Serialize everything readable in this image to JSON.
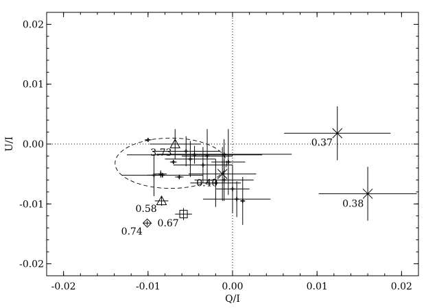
{
  "chart_data": {
    "type": "scatter",
    "xlabel": "Q/I",
    "ylabel": "U/I",
    "xlim": [
      -0.022,
      0.022
    ],
    "ylim": [
      -0.022,
      0.022
    ],
    "xticks": [
      -0.02,
      -0.01,
      0.0,
      0.01,
      0.02
    ],
    "yticks": [
      -0.02,
      -0.01,
      0.0,
      0.01,
      0.02
    ],
    "xtick_labels": [
      "-0.02",
      "-0.01",
      "0.00",
      "0.01",
      "0.02"
    ],
    "ytick_labels": [
      "-0.02",
      "-0.01",
      "0.00",
      "0.01",
      "0.02"
    ],
    "reference_lines": {
      "x": 0,
      "y": 0,
      "style": "dotted"
    },
    "ellipse": {
      "cx": -0.0073,
      "cy": -0.0032,
      "rx": 0.0066,
      "ry": 0.0042,
      "style": "dashed"
    },
    "small_points": [
      {
        "x": -0.01,
        "y": 0.0007,
        "xerr": 0.0004,
        "yerr": 0.0002
      },
      {
        "x": -0.0093,
        "y": -0.0052,
        "xerr": 0.0008,
        "yerr": 0.0035
      },
      {
        "x": -0.0085,
        "y": -0.005,
        "xerr": 0.0007,
        "yerr": 0.0006
      },
      {
        "x": -0.0083,
        "y": -0.0052,
        "xerr": 0.0048,
        "yerr": 0.0004
      },
      {
        "x": -0.007,
        "y": -0.003,
        "xerr": 0.0004,
        "yerr": 0.0002
      },
      {
        "x": -0.0063,
        "y": -0.0055,
        "xerr": 0.0005,
        "yerr": 0.0004
      },
      {
        "x": -0.0055,
        "y": -0.0012,
        "xerr": 0.004,
        "yerr": 0.0025
      },
      {
        "x": -0.005,
        "y": -0.0025,
        "xerr": 0.003,
        "yerr": 0.003
      },
      {
        "x": -0.0045,
        "y": -0.0018,
        "xerr": 0.008,
        "yerr": 0.0015
      },
      {
        "x": -0.0035,
        "y": -0.0035,
        "xerr": 0.0035,
        "yerr": 0.003
      },
      {
        "x": -0.003,
        "y": -0.002,
        "xerr": 0.003,
        "yerr": 0.0045
      },
      {
        "x": -0.002,
        "y": -0.0065,
        "xerr": 0.003,
        "yerr": 0.004
      },
      {
        "x": -0.001,
        "y": -0.0017,
        "xerr": 0.008,
        "yerr": 0.0025
      },
      {
        "x": -0.001,
        "y": -0.006,
        "xerr": 0.0035,
        "yerr": 0.0035
      },
      {
        "x": -0.0005,
        "y": -0.003,
        "xerr": 0.002,
        "yerr": 0.0055
      },
      {
        "x": 0.0,
        "y": -0.0075,
        "xerr": 0.002,
        "yerr": 0.004
      },
      {
        "x": 0.0005,
        "y": -0.0092,
        "xerr": 0.004,
        "yerr": 0.003
      },
      {
        "x": 0.0012,
        "y": -0.0095,
        "xerr": 0.0003,
        "yerr": 0.004
      }
    ],
    "labeled_points": [
      {
        "label": "3.73",
        "marker": "triangle",
        "x": -0.0068,
        "y": 0.0,
        "xerr": 0.003,
        "yerr": 0.0025,
        "label_dx": -36,
        "label_dy": 17
      },
      {
        "label": "0.40",
        "marker": "x",
        "x": -0.0012,
        "y": -0.005,
        "xerr": 0.004,
        "yerr": 0.0045,
        "label_dx": -38,
        "label_dy": 18
      },
      {
        "label": "0.37",
        "marker": "x",
        "x": 0.0124,
        "y": 0.0018,
        "xerr": 0.0063,
        "yerr": 0.0045,
        "label_dx": -38,
        "label_dy": 18
      },
      {
        "label": "0.38",
        "marker": "x",
        "x": 0.016,
        "y": -0.0083,
        "xerr": 0.0058,
        "yerr": 0.0045,
        "label_dx": -37,
        "label_dy": 19
      },
      {
        "label": "0.58",
        "marker": "triangle",
        "x": -0.0084,
        "y": -0.0095,
        "xerr": 0.0008,
        "yerr": 0.0008,
        "label_dx": -38,
        "label_dy": 16
      },
      {
        "label": "0.67",
        "marker": "square",
        "x": -0.0058,
        "y": -0.0117,
        "xerr": 0.001,
        "yerr": 0.001,
        "label_dx": -38,
        "label_dy": 18
      },
      {
        "label": "0.74",
        "marker": "diamond",
        "x": -0.0101,
        "y": -0.0132,
        "xerr": 0.0004,
        "yerr": 0.0004,
        "label_dx": -38,
        "label_dy": 17
      }
    ]
  }
}
